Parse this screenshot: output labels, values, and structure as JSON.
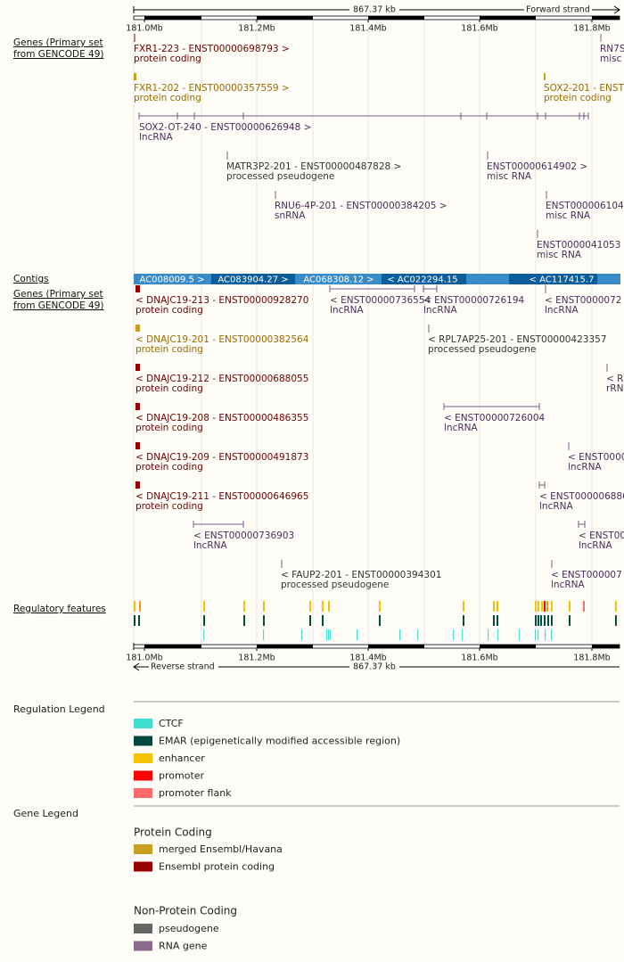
{
  "ruler_top": {
    "length": "867.37 kb",
    "strand": "Forward strand",
    "ticks": [
      "181.0Mb",
      "181.2Mb",
      "181.4Mb",
      "181.6Mb",
      "181.8Mb"
    ]
  },
  "genes_forward": {
    "label": [
      "Genes (Primary set",
      "from GENCODE 49)"
    ],
    "genes": [
      {
        "name": "FXR1-223 - ENST00000698793 >",
        "biotype": "protein coding"
      },
      {
        "name": "RN7S",
        "biotype": "misc"
      },
      {
        "name": "FXR1-202 - ENST00000357559 >",
        "biotype": "protein coding"
      },
      {
        "name": "SOX2-201 - ENST",
        "biotype": "protein coding"
      },
      {
        "name": "SOX2-OT-240 - ENST00000626948 >",
        "biotype": "lncRNA"
      },
      {
        "name": "MATR3P2-201 - ENST00000487828 >",
        "biotype": "processed pseudogene"
      },
      {
        "name": "ENST00000614902 >",
        "biotype": "misc RNA"
      },
      {
        "name": "RNU6-4P-201 - ENST00000384205 >",
        "biotype": "snRNA"
      },
      {
        "name": "ENST000006104",
        "biotype": "misc RNA"
      },
      {
        "name": "ENST0000041053",
        "biotype": "misc RNA"
      }
    ]
  },
  "contigs": {
    "label": "Contigs",
    "items": [
      "AC008009.5 >",
      "AC083904.27 >",
      "AC068308.12 >",
      "< AC022294.15",
      "< AC117415.7"
    ]
  },
  "genes_reverse": {
    "label": [
      "Genes (Primary set",
      "from GENCODE 49)"
    ],
    "genes": [
      {
        "name": "< DNAJC19-213 - ENST00000928270",
        "biotype": "protein coding"
      },
      {
        "name": "< ENST00000736554",
        "biotype": "lncRNA"
      },
      {
        "name": "< ENST00000726194",
        "biotype": "lncRNA"
      },
      {
        "name": "< ENST0000072",
        "biotype": "lncRNA"
      },
      {
        "name": "< DNAJC19-201 - ENST00000382564",
        "biotype": "protein coding"
      },
      {
        "name": "< RPL7AP25-201 - ENST00000423357",
        "biotype": "processed pseudogene"
      },
      {
        "name": "< DNAJC19-212 - ENST00000688055",
        "biotype": "protein coding"
      },
      {
        "name": "< R",
        "biotype": "rRN"
      },
      {
        "name": "< DNAJC19-208 - ENST00000486355",
        "biotype": "protein coding"
      },
      {
        "name": "< ENST00000726004",
        "biotype": "lncRNA"
      },
      {
        "name": "< DNAJC19-209 - ENST00000491873",
        "biotype": "protein coding"
      },
      {
        "name": "< ENST0000",
        "biotype": "lncRNA"
      },
      {
        "name": "< DNAJC19-211 - ENST00000646965",
        "biotype": "protein coding"
      },
      {
        "name": "< ENST000006886",
        "biotype": "lncRNA"
      },
      {
        "name": "< ENST00000736903",
        "biotype": "lncRNA"
      },
      {
        "name": "< ENST0000",
        "biotype": "lncRNA"
      },
      {
        "name": "< FAUP2-201 - ENST00000394301",
        "biotype": "processed pseudogene"
      },
      {
        "name": "< ENST000007",
        "biotype": "lncRNA"
      }
    ]
  },
  "regulatory": {
    "label": "Regulatory features"
  },
  "ruler_bottom": {
    "ticks": [
      "181.0Mb",
      "181.2Mb",
      "181.4Mb",
      "181.6Mb",
      "181.8Mb"
    ],
    "strand": "Reverse strand",
    "length": "867.37 kb"
  },
  "regulation_legend": {
    "title": "Regulation Legend",
    "items": [
      "CTCF",
      "EMAR (epigenetically modified accessible region)",
      "enhancer",
      "promoter",
      "promoter flank"
    ]
  },
  "gene_legend": {
    "title": "Gene Legend",
    "protein_coding": {
      "title": "Protein Coding",
      "items": [
        "merged Ensembl/Havana",
        "Ensembl protein coding"
      ]
    },
    "non_protein_coding": {
      "title": "Non-Protein Coding",
      "items": [
        "pseudogene",
        "RNA gene"
      ]
    }
  }
}
